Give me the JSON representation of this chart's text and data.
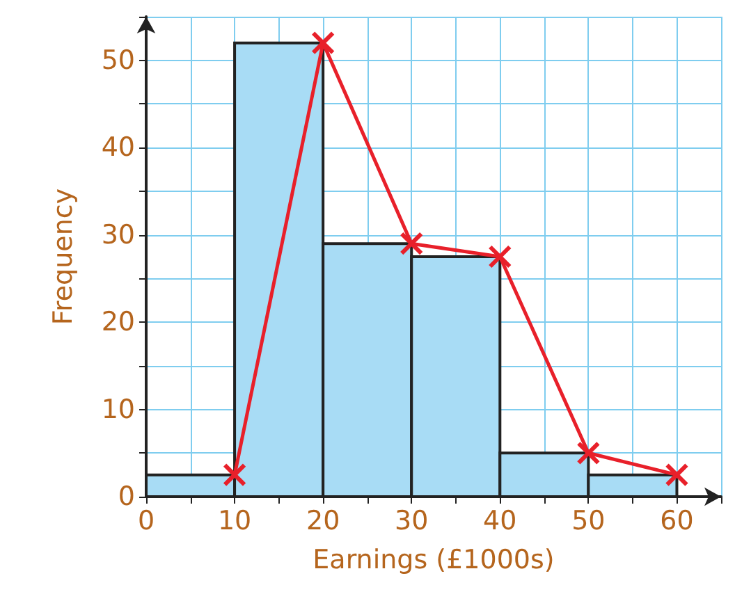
{
  "chart_data": {
    "type": "histogram",
    "xlabel": "Earnings (£1000s)",
    "ylabel": "Frequency",
    "bins": [
      0,
      10,
      20,
      30,
      40,
      50,
      60
    ],
    "values": [
      2.5,
      52,
      29,
      27.5,
      5,
      2.5
    ],
    "color": "#a8dcf5",
    "series": [
      {
        "type": "line",
        "x": [
          10,
          20,
          30,
          40,
          50,
          60
        ],
        "values": [
          2.5,
          52,
          29,
          27.5,
          5,
          2.5
        ],
        "color": "#e8202a"
      }
    ],
    "marker": "cross",
    "grid": true,
    "xlim": [
      0,
      65
    ],
    "xticks": [
      0,
      {
        "value": 5,
        "label": null
      },
      10,
      {
        "value": 15,
        "label": null
      },
      20,
      {
        "value": 25,
        "label": null
      },
      30,
      {
        "value": 35,
        "label": null
      },
      40,
      {
        "value": 45,
        "label": null
      },
      50,
      {
        "value": 55,
        "label": null
      },
      60,
      {
        "value": 65,
        "label": null
      }
    ],
    "ylim": [
      0,
      55
    ],
    "yticks": [
      0,
      {
        "value": 5,
        "label": null
      },
      10,
      {
        "value": 15,
        "label": null
      },
      20,
      {
        "value": 25,
        "label": null
      },
      30,
      {
        "value": 35,
        "label": null
      },
      40,
      {
        "value": 45,
        "label": null
      },
      50,
      {
        "value": 55,
        "label": null
      }
    ]
  }
}
